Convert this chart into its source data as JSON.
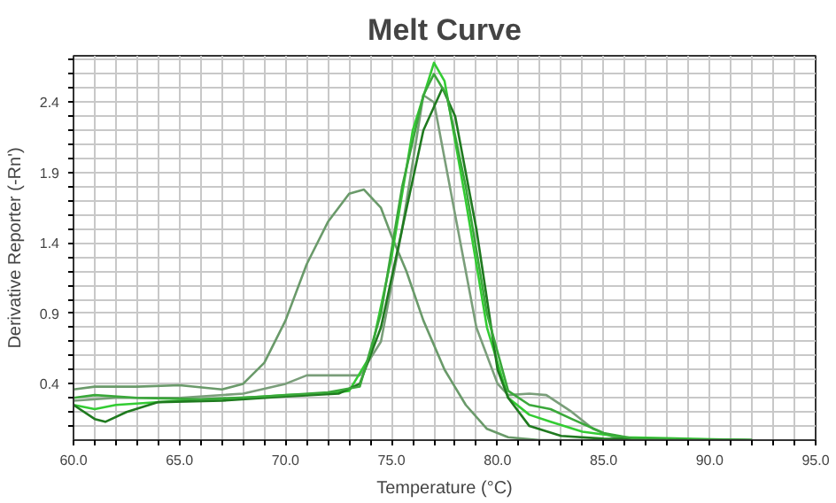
{
  "chart_data": {
    "type": "line",
    "title": "Melt Curve",
    "xlabel": "Temperature (°C)",
    "ylabel": "Derivative Reporter (-Rn')",
    "xlim": [
      60,
      95
    ],
    "ylim": [
      0,
      2.73
    ],
    "xticks": [
      {
        "value": 60,
        "label": "60.0"
      },
      {
        "value": 61,
        "label": null
      },
      {
        "value": 62,
        "label": null
      },
      {
        "value": 63,
        "label": null
      },
      {
        "value": 64,
        "label": null
      },
      {
        "value": 65,
        "label": "65.0"
      },
      {
        "value": 66,
        "label": null
      },
      {
        "value": 67,
        "label": null
      },
      {
        "value": 68,
        "label": null
      },
      {
        "value": 69,
        "label": null
      },
      {
        "value": 70,
        "label": "70.0"
      },
      {
        "value": 71,
        "label": null
      },
      {
        "value": 72,
        "label": null
      },
      {
        "value": 73,
        "label": null
      },
      {
        "value": 74,
        "label": null
      },
      {
        "value": 75,
        "label": "75.0"
      },
      {
        "value": 76,
        "label": null
      },
      {
        "value": 77,
        "label": null
      },
      {
        "value": 78,
        "label": null
      },
      {
        "value": 79,
        "label": null
      },
      {
        "value": 80,
        "label": "80.0"
      },
      {
        "value": 81,
        "label": null
      },
      {
        "value": 82,
        "label": null
      },
      {
        "value": 83,
        "label": null
      },
      {
        "value": 84,
        "label": null
      },
      {
        "value": 85,
        "label": "85.0"
      },
      {
        "value": 86,
        "label": null
      },
      {
        "value": 87,
        "label": null
      },
      {
        "value": 88,
        "label": null
      },
      {
        "value": 89,
        "label": null
      },
      {
        "value": 90,
        "label": "90.0"
      },
      {
        "value": 91,
        "label": null
      },
      {
        "value": 92,
        "label": null
      },
      {
        "value": 93,
        "label": null
      },
      {
        "value": 94,
        "label": null
      },
      {
        "value": 95,
        "label": "95.0"
      }
    ],
    "yticks": [
      {
        "value": 0.1,
        "label": null
      },
      {
        "value": 0.2,
        "label": null
      },
      {
        "value": 0.3,
        "label": null
      },
      {
        "value": 0.4,
        "label": "0.4"
      },
      {
        "value": 0.5,
        "label": null
      },
      {
        "value": 0.6,
        "label": null
      },
      {
        "value": 0.7,
        "label": null
      },
      {
        "value": 0.8,
        "label": null
      },
      {
        "value": 0.9,
        "label": "0.9"
      },
      {
        "value": 1.0,
        "label": null
      },
      {
        "value": 1.1,
        "label": null
      },
      {
        "value": 1.2,
        "label": null
      },
      {
        "value": 1.3,
        "label": null
      },
      {
        "value": 1.4,
        "label": "1.4"
      },
      {
        "value": 1.5,
        "label": null
      },
      {
        "value": 1.6,
        "label": null
      },
      {
        "value": 1.7,
        "label": null
      },
      {
        "value": 1.8,
        "label": null
      },
      {
        "value": 1.9,
        "label": "1.9"
      },
      {
        "value": 2.0,
        "label": null
      },
      {
        "value": 2.1,
        "label": null
      },
      {
        "value": 2.2,
        "label": null
      },
      {
        "value": 2.3,
        "label": null
      },
      {
        "value": 2.4,
        "label": "2.4"
      },
      {
        "value": 2.5,
        "label": null
      },
      {
        "value": 2.6,
        "label": null
      },
      {
        "value": 2.7,
        "label": null
      }
    ],
    "grid": true,
    "marker": "none",
    "line_style": "solid",
    "series": [
      {
        "color": "#6a9a6a",
        "x": [
          60,
          61,
          63,
          65,
          67,
          68,
          69,
          70,
          71,
          72,
          73,
          73.7,
          74.5,
          75,
          75.7,
          76.5,
          77.5,
          78.5,
          79.5,
          80.5,
          82,
          92
        ],
        "values": [
          0.36,
          0.38,
          0.38,
          0.39,
          0.36,
          0.4,
          0.55,
          0.85,
          1.25,
          1.55,
          1.75,
          1.78,
          1.65,
          1.45,
          1.2,
          0.85,
          0.5,
          0.25,
          0.08,
          0.02,
          0.0,
          0.0
        ]
      },
      {
        "color": "#7a9e7a",
        "x": [
          60,
          62,
          65,
          68,
          70,
          71,
          73.5,
          74.5,
          75.5,
          76.5,
          77,
          78,
          79,
          80,
          80.5,
          81.5,
          82.3,
          83.5,
          84.5,
          85.5,
          87,
          92
        ],
        "values": [
          0.28,
          0.3,
          0.3,
          0.33,
          0.4,
          0.46,
          0.46,
          0.7,
          1.5,
          2.45,
          2.4,
          1.6,
          0.8,
          0.4,
          0.32,
          0.33,
          0.32,
          0.2,
          0.08,
          0.02,
          0.01,
          0.0
        ]
      },
      {
        "color": "#33cc33",
        "x": [
          60,
          61,
          62,
          65,
          68,
          70,
          72,
          73,
          74,
          75,
          76,
          77,
          77.5,
          78.5,
          79.5,
          80.5,
          81.5,
          82.5,
          84,
          86,
          92
        ],
        "values": [
          0.25,
          0.22,
          0.25,
          0.28,
          0.3,
          0.32,
          0.33,
          0.35,
          0.6,
          1.3,
          2.2,
          2.68,
          2.55,
          1.7,
          0.8,
          0.3,
          0.18,
          0.13,
          0.06,
          0.02,
          0.0
        ]
      },
      {
        "color": "#1f7a1f",
        "x": [
          60,
          61,
          61.5,
          62.5,
          64,
          67,
          70,
          72.5,
          73.5,
          74.5,
          75.5,
          76.5,
          77.4,
          78,
          79,
          80,
          80.5,
          81.5,
          83,
          85,
          92
        ],
        "values": [
          0.25,
          0.15,
          0.13,
          0.2,
          0.27,
          0.28,
          0.31,
          0.33,
          0.4,
          0.8,
          1.5,
          2.2,
          2.5,
          2.3,
          1.5,
          0.5,
          0.3,
          0.1,
          0.03,
          0.01,
          0.0
        ]
      },
      {
        "color": "#3aa83a",
        "x": [
          60,
          61,
          63,
          66,
          69,
          72,
          73.5,
          74.5,
          75.5,
          76.5,
          77,
          77.6,
          78.5,
          79.5,
          80.5,
          81.5,
          82.5,
          83.5,
          85,
          86.5,
          92
        ],
        "values": [
          0.3,
          0.32,
          0.3,
          0.29,
          0.31,
          0.34,
          0.38,
          0.9,
          1.8,
          2.45,
          2.6,
          2.45,
          1.8,
          0.9,
          0.35,
          0.25,
          0.22,
          0.15,
          0.05,
          0.01,
          0.0
        ]
      }
    ]
  }
}
